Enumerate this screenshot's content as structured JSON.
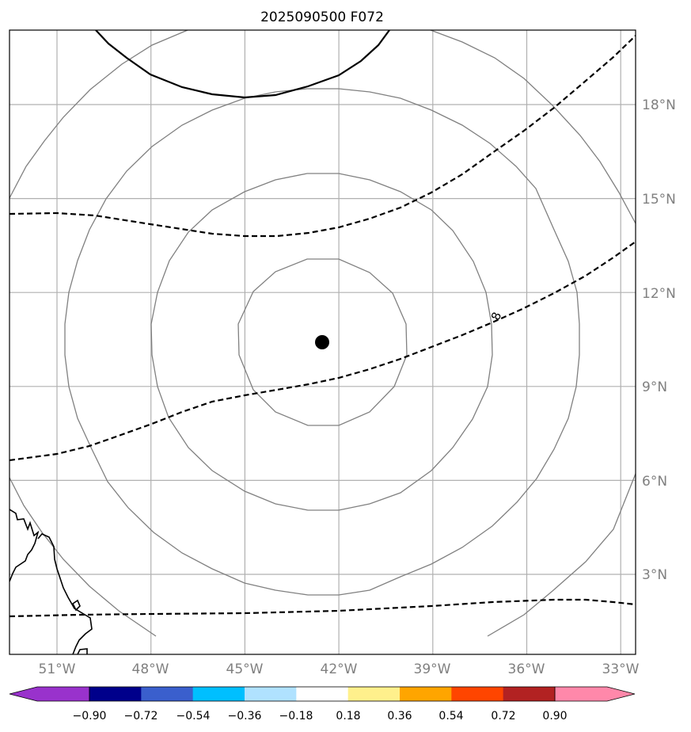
{
  "title": "2025090500 F072",
  "map": {
    "lon_ticks": [
      {
        "value": -51,
        "label": "51°W"
      },
      {
        "value": -48,
        "label": "48°W"
      },
      {
        "value": -45,
        "label": "45°W"
      },
      {
        "value": -42,
        "label": "42°W"
      },
      {
        "value": -39,
        "label": "39°W"
      },
      {
        "value": -36,
        "label": "36°W"
      },
      {
        "value": -33,
        "label": "33°W"
      }
    ],
    "lat_ticks": [
      {
        "value": 3,
        "label": "3°N"
      },
      {
        "value": 6,
        "label": "6°N"
      },
      {
        "value": 9,
        "label": "9°N"
      },
      {
        "value": 12,
        "label": "12°N"
      },
      {
        "value": 15,
        "label": "15°N"
      },
      {
        "value": 18,
        "label": "18°N"
      }
    ],
    "extent": {
      "lon_min": -52.5,
      "lon_max": -32.5,
      "lat_min": 0.5,
      "lat_max": 20.4
    },
    "center_marker": {
      "lon": -42.5,
      "lat": 10.35
    },
    "contour_label": "8",
    "colors": {
      "gridline": "#b0b0b0",
      "circle_contour": "#808080",
      "dashed_contour": "#000000",
      "coastline": "#000000",
      "marker": "#000000"
    }
  },
  "colorbar": {
    "levels": [
      -0.9,
      -0.72,
      -0.54,
      -0.36,
      -0.18,
      0.18,
      0.36,
      0.54,
      0.72,
      0.9
    ],
    "tick_labels": [
      "−0.90",
      "−0.72",
      "−0.54",
      "−0.36",
      "−0.18",
      "0.18",
      "0.36",
      "0.54",
      "0.72",
      "0.90"
    ],
    "under_color": "#9932cc",
    "over_color": "#ff88aa",
    "colors": [
      "#00008b",
      "#3a5fcd",
      "#00bfff",
      "#b0e2ff",
      "#ffffff",
      "#fff08c",
      "#ffa500",
      "#ff4500",
      "#b22222"
    ]
  }
}
